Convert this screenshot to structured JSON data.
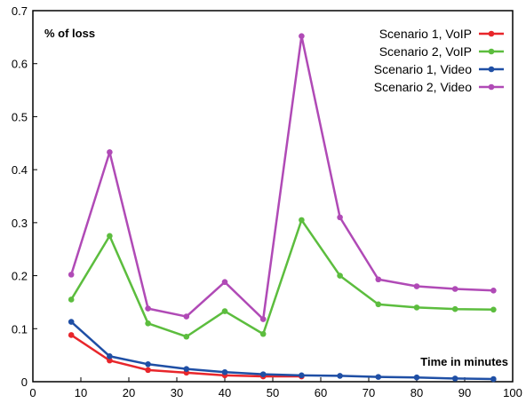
{
  "chart_data": {
    "type": "line",
    "title": "",
    "xlabel": "Time in minutes",
    "ylabel": "% of loss",
    "xlim": [
      0,
      100
    ],
    "ylim": [
      0,
      0.7
    ],
    "xticks": [
      0,
      10,
      20,
      30,
      40,
      50,
      60,
      70,
      80,
      90,
      100
    ],
    "yticks": [
      0,
      0.1,
      0.2,
      0.3,
      0.4,
      0.5,
      0.6,
      0.7
    ],
    "ytick_labels": [
      "0",
      "0.1",
      "0.2",
      "0.3",
      "0.4",
      "0.5",
      "0.6",
      "0.7"
    ],
    "grid": false,
    "legend_position": "top-right",
    "x": [
      8,
      16,
      24,
      32,
      40,
      48,
      56,
      64,
      72,
      80,
      88,
      96
    ],
    "series": [
      {
        "name": "Scenario 1, VoIP",
        "color": "#e8262b",
        "x": [
          8,
          16,
          24,
          32,
          40,
          48,
          56
        ],
        "values": [
          0.088,
          0.04,
          0.022,
          0.017,
          0.012,
          0.01,
          0.01
        ]
      },
      {
        "name": "Scenario 2, VoIP",
        "color": "#5cbd3e",
        "values": [
          0.155,
          0.275,
          0.11,
          0.085,
          0.133,
          0.09,
          0.305,
          0.2,
          0.146,
          0.14,
          0.137,
          0.136
        ]
      },
      {
        "name": "Scenario 1, Video",
        "color": "#1f4fa5",
        "values": [
          0.113,
          0.048,
          0.033,
          0.024,
          0.018,
          0.014,
          0.012,
          0.011,
          0.009,
          0.008,
          0.006,
          0.005
        ]
      },
      {
        "name": "Scenario 2, Video",
        "color": "#b04ab6",
        "values": [
          0.202,
          0.433,
          0.138,
          0.123,
          0.188,
          0.118,
          0.652,
          0.31,
          0.193,
          0.18,
          0.175,
          0.172
        ]
      }
    ]
  }
}
